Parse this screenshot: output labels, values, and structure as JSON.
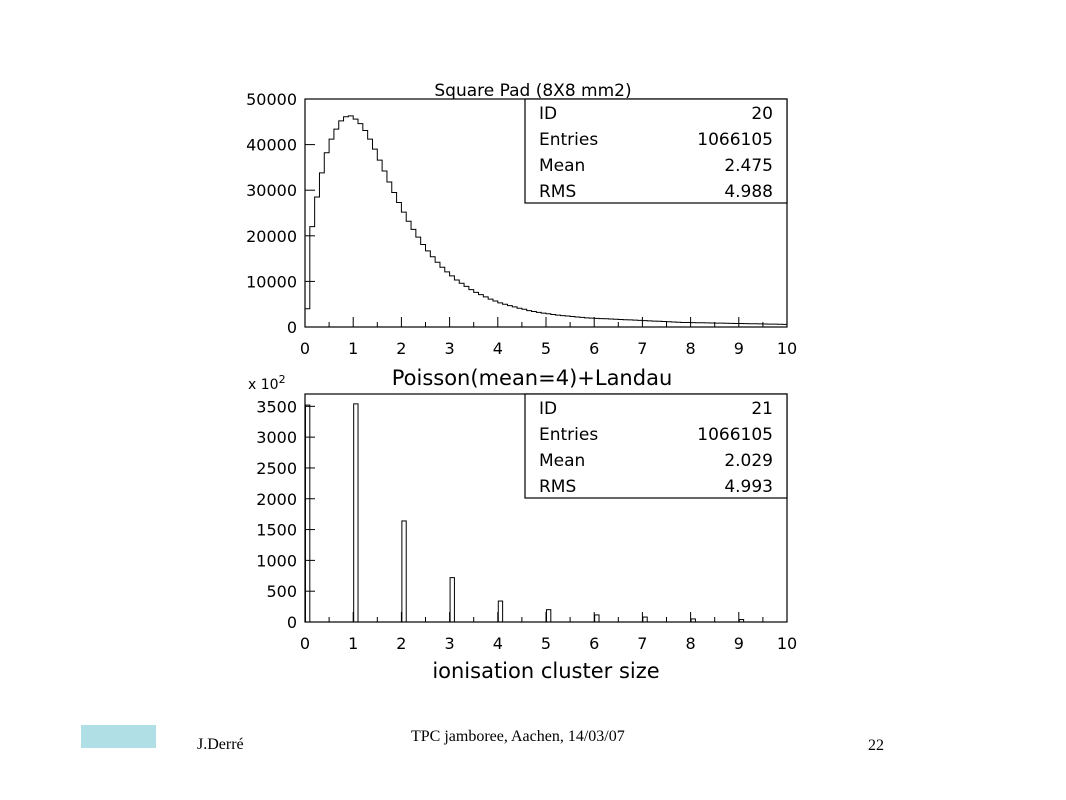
{
  "colors": {
    "line": "#000000",
    "footer_box": "#b0e0e6"
  },
  "chart_data": [
    {
      "type": "histogram",
      "title": "Square Pad (8X8 mm2)",
      "xlim": [
        0,
        10
      ],
      "ylim": [
        0,
        50000
      ],
      "xticks": [
        0,
        1,
        2,
        3,
        4,
        5,
        6,
        7,
        8,
        9,
        10
      ],
      "yticks": [
        0,
        10000,
        20000,
        30000,
        40000,
        50000
      ],
      "bin_width": 0.1,
      "values": [
        4000,
        22000,
        28500,
        33800,
        38200,
        41200,
        43400,
        45200,
        46100,
        46300,
        45600,
        44600,
        43100,
        41200,
        39000,
        36600,
        34200,
        31800,
        29500,
        27300,
        25200,
        23200,
        21400,
        19700,
        18100,
        16700,
        15400,
        14200,
        13100,
        12100,
        11200,
        10300,
        9600,
        8900,
        8200,
        7600,
        7100,
        6600,
        6100,
        5700,
        5300,
        5000,
        4700,
        4400,
        4100,
        3900,
        3600,
        3400,
        3200,
        3050,
        2900,
        2750,
        2600,
        2500,
        2400,
        2300,
        2200,
        2100,
        2000,
        1950,
        1900,
        1850,
        1800,
        1750,
        1700,
        1650,
        1600,
        1550,
        1500,
        1450,
        1400,
        1350,
        1300,
        1250,
        1200,
        1150,
        1100,
        1050,
        1000,
        980,
        960,
        940,
        920,
        900,
        880,
        860,
        840,
        820,
        800,
        780,
        760,
        740,
        720,
        700,
        680,
        660,
        640,
        620,
        600,
        580
      ],
      "stats": [
        {
          "label": "ID",
          "value": "20"
        },
        {
          "label": "Entries",
          "value": "1066105"
        },
        {
          "label": "Mean",
          "value": "2.475"
        },
        {
          "label": "RMS",
          "value": "4.988"
        }
      ]
    },
    {
      "type": "histogram",
      "title": "Poisson(mean=4)+Landau",
      "xlabel": "ionisation cluster size",
      "scale_label": "x 10",
      "scale_exp": "2",
      "xlim": [
        0,
        10
      ],
      "ylim": [
        0,
        3700
      ],
      "xticks": [
        0,
        1,
        2,
        3,
        4,
        5,
        6,
        7,
        8,
        9,
        10
      ],
      "yticks": [
        0,
        500,
        1000,
        1500,
        2000,
        2500,
        3000,
        3500
      ],
      "bin_width": 0.1,
      "bars": [
        {
          "x": 0,
          "value": 3520
        },
        {
          "x": 1,
          "value": 3540
        },
        {
          "x": 2,
          "value": 1640
        },
        {
          "x": 3,
          "value": 720
        },
        {
          "x": 4,
          "value": 340
        },
        {
          "x": 5,
          "value": 200
        },
        {
          "x": 6,
          "value": 115
        },
        {
          "x": 7,
          "value": 80
        },
        {
          "x": 8,
          "value": 50
        },
        {
          "x": 9,
          "value": 40
        }
      ],
      "stats": [
        {
          "label": "ID",
          "value": "21"
        },
        {
          "label": "Entries",
          "value": "1066105"
        },
        {
          "label": "Mean",
          "value": "2.029"
        },
        {
          "label": "RMS",
          "value": "4.993"
        }
      ]
    }
  ],
  "footer": {
    "author": "J.Derré",
    "event": "TPC jamboree, Aachen, 14/03/07",
    "page": "22"
  }
}
